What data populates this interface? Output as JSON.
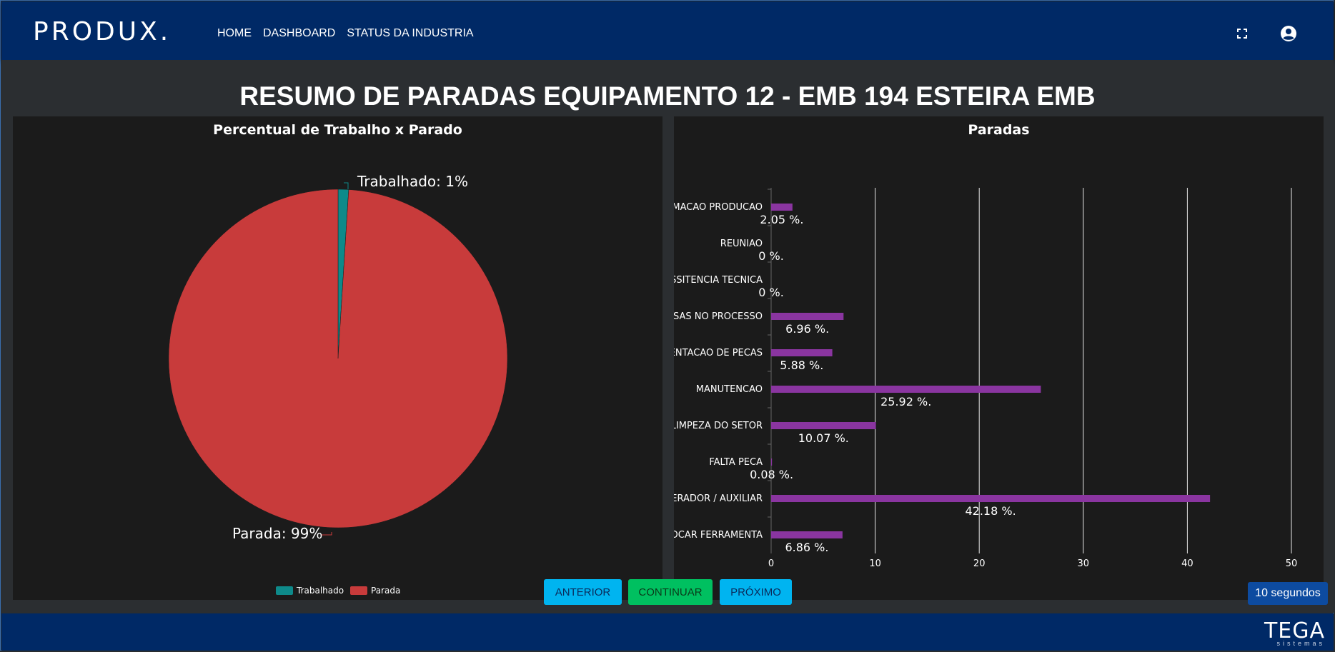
{
  "app": {
    "logo": "PRODUX."
  },
  "nav": {
    "items": [
      "HOME",
      "DASHBOARD",
      "STATUS DA INDUSTRIA"
    ]
  },
  "header": {
    "fullscreen_icon": "fullscreen-icon",
    "user_icon": "account-circle-icon"
  },
  "page": {
    "title": "RESUMO DE PARADAS EQUIPAMENTO 12 - EMB 194 ESTEIRA EMB"
  },
  "pie": {
    "title": "Percentual de Trabalho x Parado",
    "label_trabalhado": "Trabalhado: 1%",
    "label_parada": "Parada: 99%",
    "legend": [
      "Trabalhado",
      "Parada"
    ]
  },
  "bar": {
    "title": "Paradas"
  },
  "buttons": {
    "anterior": "ANTERIOR",
    "continuar": "CONTINUAR",
    "proximo": "PRÓXIMO"
  },
  "timer": {
    "label": "10 segundos"
  },
  "footer": {
    "brand": "TEGA",
    "brand_sub": "sistemas"
  },
  "colors": {
    "header": "#002966",
    "trabalhado": "#0e8a8a",
    "parada": "#c83b3b",
    "bar": "#8a35a0",
    "btn_blue": "#00b4f0",
    "btn_green": "#00c060"
  },
  "chart_data": [
    {
      "type": "pie",
      "title": "Percentual de Trabalho x Parado",
      "slices": [
        {
          "name": "Trabalhado",
          "value": 1
        },
        {
          "name": "Parada",
          "value": 99
        }
      ],
      "legend_position": "bottom"
    },
    {
      "type": "bar",
      "orientation": "horizontal",
      "title": "Paradas",
      "categories": [
        "AMACAO PRODUCAO",
        "REUNIAO",
        "SSITENCIA TECNICA",
        "RSAS NO PROCESSO",
        "MENTACAO DE PECAS",
        "MANUTENCAO",
        "LIMPEZA DO SETOR",
        "FALTA PECA",
        "PERADOR / AUXILIAR",
        "ROCAR FERRAMENTA"
      ],
      "values": [
        2.05,
        0,
        0,
        6.96,
        5.88,
        25.92,
        10.07,
        0.08,
        42.18,
        6.86
      ],
      "data_labels": [
        "2.05 %.",
        "0 %.",
        "0 %.",
        "6.96 %.",
        "5.88 %.",
        "25.92 %.",
        "10.07 %.",
        "0.08 %.",
        "42.18 %.",
        "6.86 %."
      ],
      "xlim": [
        0,
        50
      ],
      "xticks": [
        "0",
        "10",
        "20",
        "30",
        "40",
        "50"
      ],
      "grid": true
    }
  ]
}
